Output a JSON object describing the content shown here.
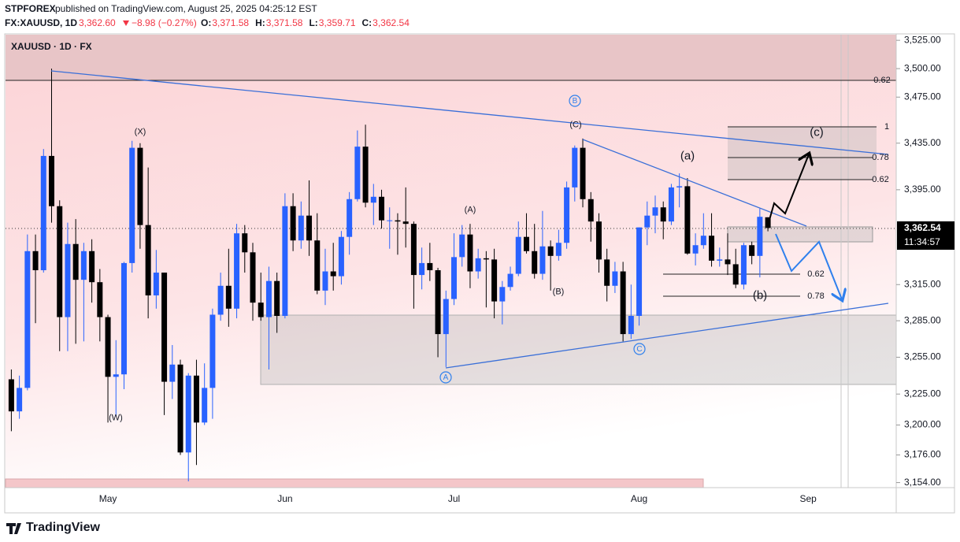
{
  "header": {
    "publisher": "STPFOREX",
    "published": "published on TradingView.com, August 25, 2025 04:25:12 EST",
    "symbol": "FX:XAUUSD, 1D",
    "price": "3,362.60",
    "change": "−8.98 (−0.27%)",
    "ohlc": [
      {
        "key": "O:",
        "value": "3,371.58"
      },
      {
        "key": "H:",
        "value": "3,371.58"
      },
      {
        "key": "L:",
        "value": "3,359.71"
      },
      {
        "key": "C:",
        "value": "3,362.54"
      }
    ],
    "price_label": "3,362.54",
    "countdown": "11:34:57"
  },
  "footer": {
    "brand": "TradingView"
  },
  "chart_data": {
    "type": "candlestick",
    "title": "XAUUSD · 1D · FX",
    "log_scale": true,
    "up_color": "#2962ff",
    "down_color": "#000000",
    "categories": [
      null,
      null,
      null,
      null,
      null,
      null,
      null,
      null,
      null,
      null,
      null,
      null,
      "May",
      null,
      null,
      null,
      null,
      null,
      null,
      null,
      null,
      null,
      null,
      null,
      null,
      null,
      null,
      null,
      null,
      null,
      null,
      null,
      null,
      null,
      "Jun",
      null,
      null,
      null,
      null,
      null,
      null,
      null,
      null,
      null,
      null,
      null,
      null,
      null,
      null,
      null,
      null,
      null,
      null,
      null,
      null,
      "Jul",
      null,
      null,
      null,
      null,
      null,
      null,
      null,
      null,
      null,
      null,
      null,
      null,
      null,
      null,
      null,
      null,
      null,
      null,
      null,
      null,
      null,
      null,
      "Aug",
      null,
      null,
      null,
      null,
      null,
      null,
      null,
      null,
      null,
      null,
      null,
      null,
      null,
      null,
      null,
      null,
      null,
      null,
      null,
      null,
      "Sep",
      null,
      null,
      null,
      null,
      null,
      null,
      null,
      null,
      null,
      null
    ],
    "open": [
      3237,
      3211,
      3230,
      3343,
      3327,
      3424,
      3381,
      3288,
      3349,
      3319,
      3343,
      3317,
      3288,
      3239,
      3241,
      3333,
      3431,
      3365,
      3306,
      3325,
      3235,
      3249,
      3178,
      3240,
      3202,
      3230,
      3290,
      3314,
      3295,
      3358,
      3342,
      3300,
      3288,
      3318,
      3289,
      3381,
      3352,
      3373,
      3352,
      3310,
      3326,
      3322,
      3355,
      3387,
      3432,
      3384,
      3389,
      3369,
      3369,
      3368,
      3366,
      3323,
      3333,
      3327,
      3274,
      3303,
      3338,
      3357,
      3326,
      3337,
      3336,
      3301,
      3313,
      3324,
      3355,
      3343,
      3324,
      3347,
      3339,
      3350,
      3397,
      3431,
      3387,
      3368,
      3336,
      3314,
      3326,
      3274,
      3289,
      3363,
      3373,
      3380,
      3368,
      3397,
      3398,
      3341,
      3348,
      3356,
      3335,
      3336,
      3332,
      3315,
      3348,
      3339,
      3371.58,
      null,
      null,
      null,
      null,
      null,
      null,
      null,
      null,
      null,
      null,
      null,
      null,
      null,
      null,
      null
    ],
    "high": [
      3245,
      3240,
      3357,
      3357,
      3430,
      3500,
      3386,
      3367,
      3370,
      3350,
      3353,
      3328,
      3290,
      3269,
      3334,
      3437,
      3435,
      3414,
      3344,
      3325,
      3265,
      3253,
      3242,
      3253,
      3250,
      3295,
      3325,
      3345,
      3366,
      3365,
      3350,
      3325,
      3330,
      3325,
      3392,
      3392,
      3385,
      3403,
      3375,
      3345,
      3350,
      3360,
      3393,
      3446,
      3451,
      3400,
      3395,
      3380,
      3375,
      3397,
      3368,
      3346,
      3350,
      3329,
      3310,
      3358,
      3365,
      3366,
      3345,
      3343,
      3345,
      3318,
      3330,
      3368,
      3375,
      3366,
      3377,
      3352,
      3361,
      3402,
      3433,
      3439,
      3393,
      3375,
      3345,
      3334,
      3334,
      3315,
      3363,
      3385,
      3390,
      3385,
      3400,
      3409,
      3405,
      3358,
      3375,
      3375,
      3346,
      3358,
      3345,
      3350,
      3351,
      3379,
      3371.58,
      null,
      null,
      null,
      null,
      null,
      null,
      null,
      null,
      null,
      null,
      null,
      null,
      null,
      null,
      null
    ],
    "low": [
      3195,
      3205,
      3228,
      3283,
      3325,
      3367,
      3260,
      3260,
      3266,
      3268,
      3300,
      3268,
      3202,
      3207,
      3229,
      3325,
      3345,
      3287,
      3295,
      3208,
      3221,
      3176,
      3155,
      3168,
      3200,
      3205,
      3285,
      3280,
      3287,
      3325,
      3285,
      3285,
      3245,
      3275,
      3287,
      3343,
      3345,
      3339,
      3307,
      3298,
      3310,
      3315,
      3340,
      3385,
      3380,
      3365,
      3362,
      3345,
      3340,
      3346,
      3295,
      3311,
      3318,
      3255,
      3247,
      3298,
      3330,
      3312,
      3320,
      3296,
      3287,
      3282,
      3310,
      3322,
      3341,
      3320,
      3319,
      3310,
      3335,
      3345,
      3385,
      3380,
      3351,
      3325,
      3301,
      3308,
      3268,
      3270,
      3281,
      3348,
      3358,
      3353,
      3365,
      3380,
      3340,
      3331,
      3345,
      3330,
      3330,
      3323,
      3312,
      3311,
      3332,
      3321,
      3359.71,
      null,
      null,
      null,
      null,
      null,
      null,
      null,
      null,
      null,
      null,
      null,
      null,
      null,
      null,
      null
    ],
    "close": [
      3211,
      3230,
      3343,
      3327,
      3424,
      3381,
      3288,
      3349,
      3319,
      3343,
      3317,
      3288,
      3239,
      3241,
      3333,
      3431,
      3365,
      3306,
      3325,
      3235,
      3249,
      3178,
      3240,
      3202,
      3230,
      3290,
      3314,
      3295,
      3358,
      3342,
      3300,
      3288,
      3318,
      3289,
      3381,
      3352,
      3373,
      3352,
      3310,
      3326,
      3322,
      3355,
      3387,
      3432,
      3384,
      3389,
      3369,
      3369,
      3368,
      3366,
      3323,
      3333,
      3327,
      3274,
      3303,
      3338,
      3357,
      3326,
      3337,
      3336,
      3301,
      3313,
      3324,
      3355,
      3343,
      3324,
      3347,
      3339,
      3350,
      3397,
      3431,
      3387,
      3368,
      3336,
      3314,
      3326,
      3274,
      3289,
      3363,
      3373,
      3380,
      3368,
      3397,
      3398,
      3341,
      3348,
      3356,
      3335,
      3336,
      3332,
      3315,
      3348,
      3339,
      3372,
      3362.54,
      null,
      null,
      null,
      null,
      null,
      null,
      null,
      null,
      null,
      null,
      null,
      null,
      null,
      null,
      null
    ],
    "ylim": [
      3150,
      3530
    ],
    "yticks": [
      {
        "value": 3525,
        "label": "3,525.00"
      },
      {
        "value": 3500,
        "label": "3,500.00"
      },
      {
        "value": 3475,
        "label": "3,475.00"
      },
      {
        "value": 3435,
        "label": "3,435.00"
      },
      {
        "value": 3395,
        "label": "3,395.00"
      },
      {
        "value": 3315,
        "label": "3,315.00"
      },
      {
        "value": 3285,
        "label": "3,285.00"
      },
      {
        "value": 3255,
        "label": "3,255.00"
      },
      {
        "value": 3225,
        "label": "3,225.00"
      },
      {
        "value": 3200,
        "label": "3,200.00"
      },
      {
        "value": 3176,
        "label": "3,176.00"
      },
      {
        "value": 3154,
        "label": "3,154.00"
      }
    ],
    "annotations": [
      "(W)",
      "(X)",
      "A",
      "(A)",
      "(B)",
      "(C)",
      "B",
      "C",
      "(a)",
      "(b)",
      "(c)"
    ],
    "fib_labels": [
      "0.62",
      "1",
      "0.78",
      "0.62",
      "0.62",
      "0.78"
    ]
  }
}
